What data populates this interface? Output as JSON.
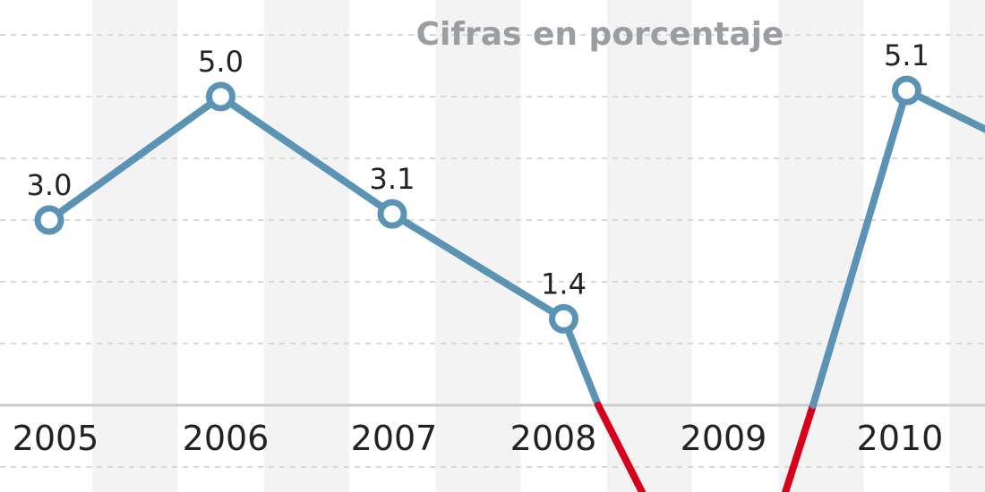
{
  "chart_data": {
    "type": "line",
    "subtitle": "Cifras en porcentaje",
    "categories": [
      "2005",
      "2006",
      "2007",
      "2008",
      "2009",
      "2010"
    ],
    "x": [
      2005,
      2006,
      2007,
      2008,
      2009,
      2010
    ],
    "series": [
      {
        "values": [
          3.0,
          5.0,
          3.1,
          1.4,
          null,
          5.1
        ]
      }
    ],
    "data_labels": [
      "3.0",
      "5.0",
      "3.1",
      "1.4",
      "",
      "5.1"
    ],
    "ylim": [
      -1.5,
      6.0
    ],
    "grid": true,
    "colors": {
      "line_positive": "#5a93b4",
      "line_negative": "#d7001a",
      "grid": "#d8d8d8",
      "band": "#f3f3f3",
      "zero_axis": "#cccccc",
      "subtitle": "#9a9ea3"
    }
  }
}
